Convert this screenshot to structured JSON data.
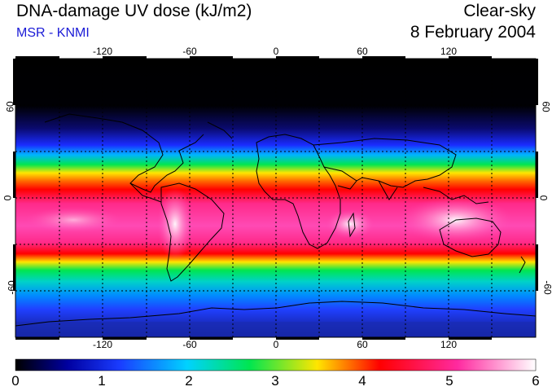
{
  "header": {
    "title": "DNA-damage UV dose (kJ/m2)",
    "source": "MSR - KNMI",
    "condition": "Clear-sky",
    "date": "8 February 2004"
  },
  "map": {
    "projection": "equirectangular",
    "lon_range": [
      -180,
      180
    ],
    "lat_range": [
      -90,
      90
    ],
    "lon_ticks": [
      "-120",
      "-60",
      "0",
      "60",
      "120"
    ],
    "lat_ticks_left": [
      "60",
      "0",
      "-60"
    ],
    "lat_ticks_right": [
      "60",
      "0",
      "-60"
    ],
    "gridlines": "dotted every 30 degrees"
  },
  "colorbar": {
    "ticks": [
      "0",
      "1",
      "2",
      "3",
      "4",
      "5",
      "6"
    ],
    "min": 0,
    "max": 6,
    "colors": [
      "#000000",
      "#0000c8",
      "#00b4ff",
      "#00e650",
      "#ffe600",
      "#ff0000",
      "#ff2aa0",
      "#ffffff"
    ]
  }
}
